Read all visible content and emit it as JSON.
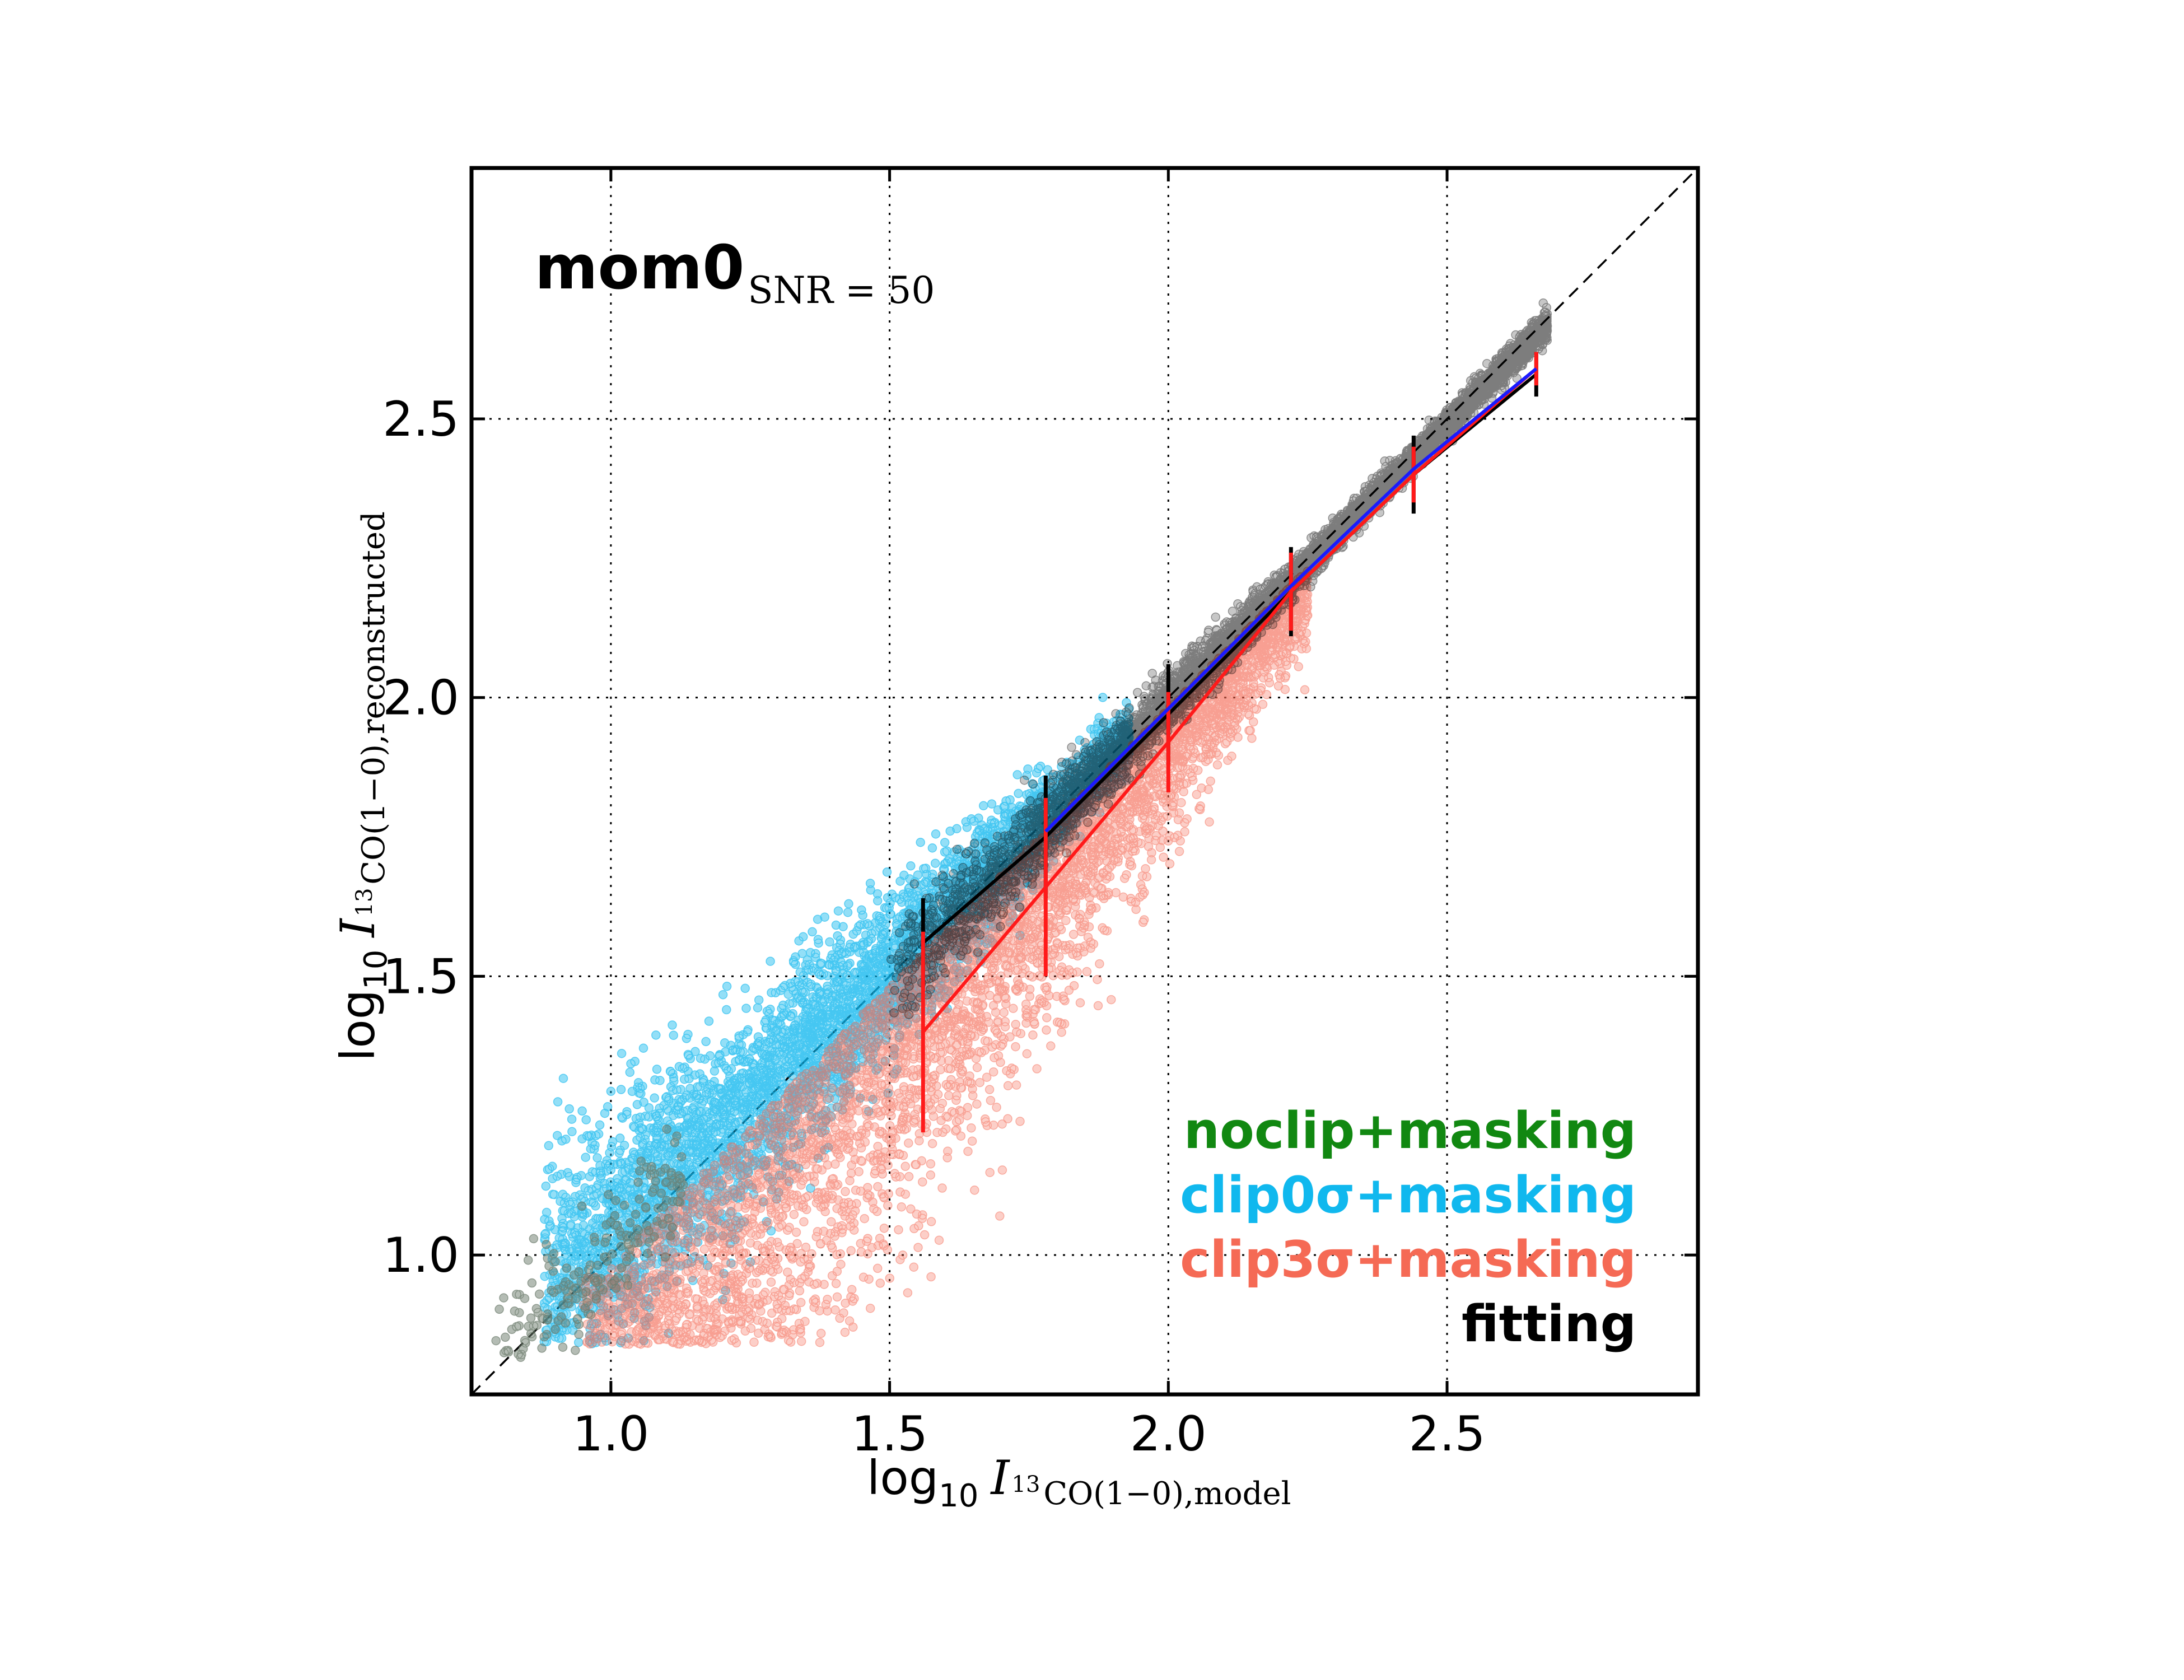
{
  "colors": {
    "noclip": "#118811",
    "clip0": "#10b8ee",
    "clip3": "#f56a55",
    "fitting": "#000000",
    "median_clip3": "#ff1a1a",
    "median_blue": "#1a1aff"
  },
  "chart_data": {
    "type": "scatter",
    "xlim": [
      0.75,
      2.95
    ],
    "ylim": [
      0.75,
      2.95
    ],
    "xticks": [
      "1.0",
      "1.5",
      "2.0",
      "2.5"
    ],
    "yticks": [
      "1.0",
      "1.5",
      "2.0",
      "2.5"
    ],
    "xtick_values": [
      1.0,
      1.5,
      2.0,
      2.5
    ],
    "ytick_values": [
      1.0,
      1.5,
      2.0,
      2.5
    ],
    "grid": true,
    "one_to_one_line": true,
    "annotation": {
      "main": "mom0",
      "subscript": "SNR = 50"
    },
    "xlabel": {
      "log": "log",
      "log_sub": "10",
      "var": "I",
      "iso": "13",
      "sub": "CO(1−0),model"
    },
    "ylabel": {
      "log": "log",
      "log_sub": "10",
      "var": "I",
      "iso": "13",
      "sub": "CO(1−0),reconstructed"
    },
    "legend": {
      "position": "lower-right",
      "entries": [
        {
          "key": "noclip",
          "label": "noclip+masking"
        },
        {
          "key": "clip0",
          "label": "clip0σ+masking"
        },
        {
          "key": "clip3",
          "label": "clip3σ+masking"
        },
        {
          "key": "fitting",
          "label": "fitting"
        }
      ]
    },
    "binned_medians": [
      {
        "name": "fitting",
        "key": "fitting",
        "x": [
          1.56,
          1.78,
          2.0,
          2.22,
          2.44,
          2.66
        ],
        "y": [
          1.56,
          1.75,
          1.97,
          2.19,
          2.4,
          2.58
        ],
        "err": [
          0.08,
          0.11,
          0.09,
          0.08,
          0.07,
          0.04
        ]
      },
      {
        "name": "clip3",
        "key": "median_clip3",
        "x": [
          1.56,
          1.78,
          2.0,
          2.22,
          2.44,
          2.66
        ],
        "y": [
          1.4,
          1.66,
          1.92,
          2.19,
          2.4,
          2.59
        ],
        "err": [
          0.18,
          0.16,
          0.09,
          0.07,
          0.05,
          0.03
        ]
      },
      {
        "name": "blue",
        "key": "median_blue",
        "x": [
          1.78,
          2.0,
          2.22,
          2.44,
          2.66
        ],
        "y": [
          1.76,
          1.98,
          2.2,
          2.41,
          2.59
        ],
        "err": [
          0,
          0,
          0,
          0,
          0
        ]
      }
    ]
  }
}
